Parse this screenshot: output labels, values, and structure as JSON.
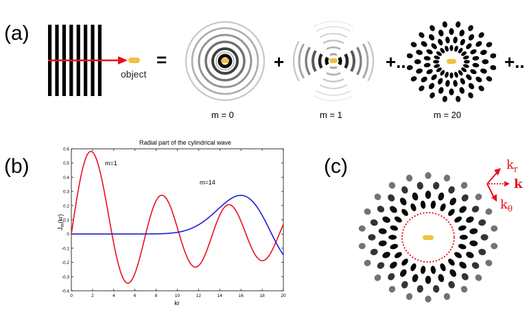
{
  "panel_a": {
    "label": "(a)",
    "object_label": "object",
    "equals": "=",
    "plus_1": "+",
    "plus_2": "+..",
    "plus_3": "+..",
    "mode_labels": [
      "m = 0",
      "m = 1",
      "m = 20"
    ]
  },
  "panel_b": {
    "label": "(b)",
    "curve_labels": [
      "m=1",
      "m=14"
    ]
  },
  "panel_c": {
    "label": "(c)",
    "k_r_base": "k",
    "k_r_sub": "r",
    "k_label": "k",
    "k_theta_base": "k",
    "k_theta_sub": "θ"
  },
  "colors": {
    "red": "#e8101a",
    "blue": "#1a1ad8",
    "object": "#f0c040"
  },
  "chart_data": {
    "type": "line",
    "title": "Radial part of the cylindrical wave",
    "xlabel": "kr",
    "ylabel": "J_m(kr)",
    "xlim": [
      0,
      20
    ],
    "ylim": [
      -0.4,
      0.6
    ],
    "xticks": [
      0,
      2,
      4,
      6,
      8,
      10,
      12,
      14,
      16,
      18,
      20
    ],
    "yticks": [
      0.6,
      0.5,
      0.4,
      0.3,
      0.2,
      0.1,
      0,
      -0.1,
      -0.2,
      -0.3,
      -0.4
    ],
    "series": [
      {
        "name": "m=1",
        "color": "#e8101a",
        "function": "besselj",
        "order": 1
      },
      {
        "name": "m=14",
        "color": "#1a1ad8",
        "function": "besselj",
        "order": 14
      }
    ],
    "grid": false
  }
}
